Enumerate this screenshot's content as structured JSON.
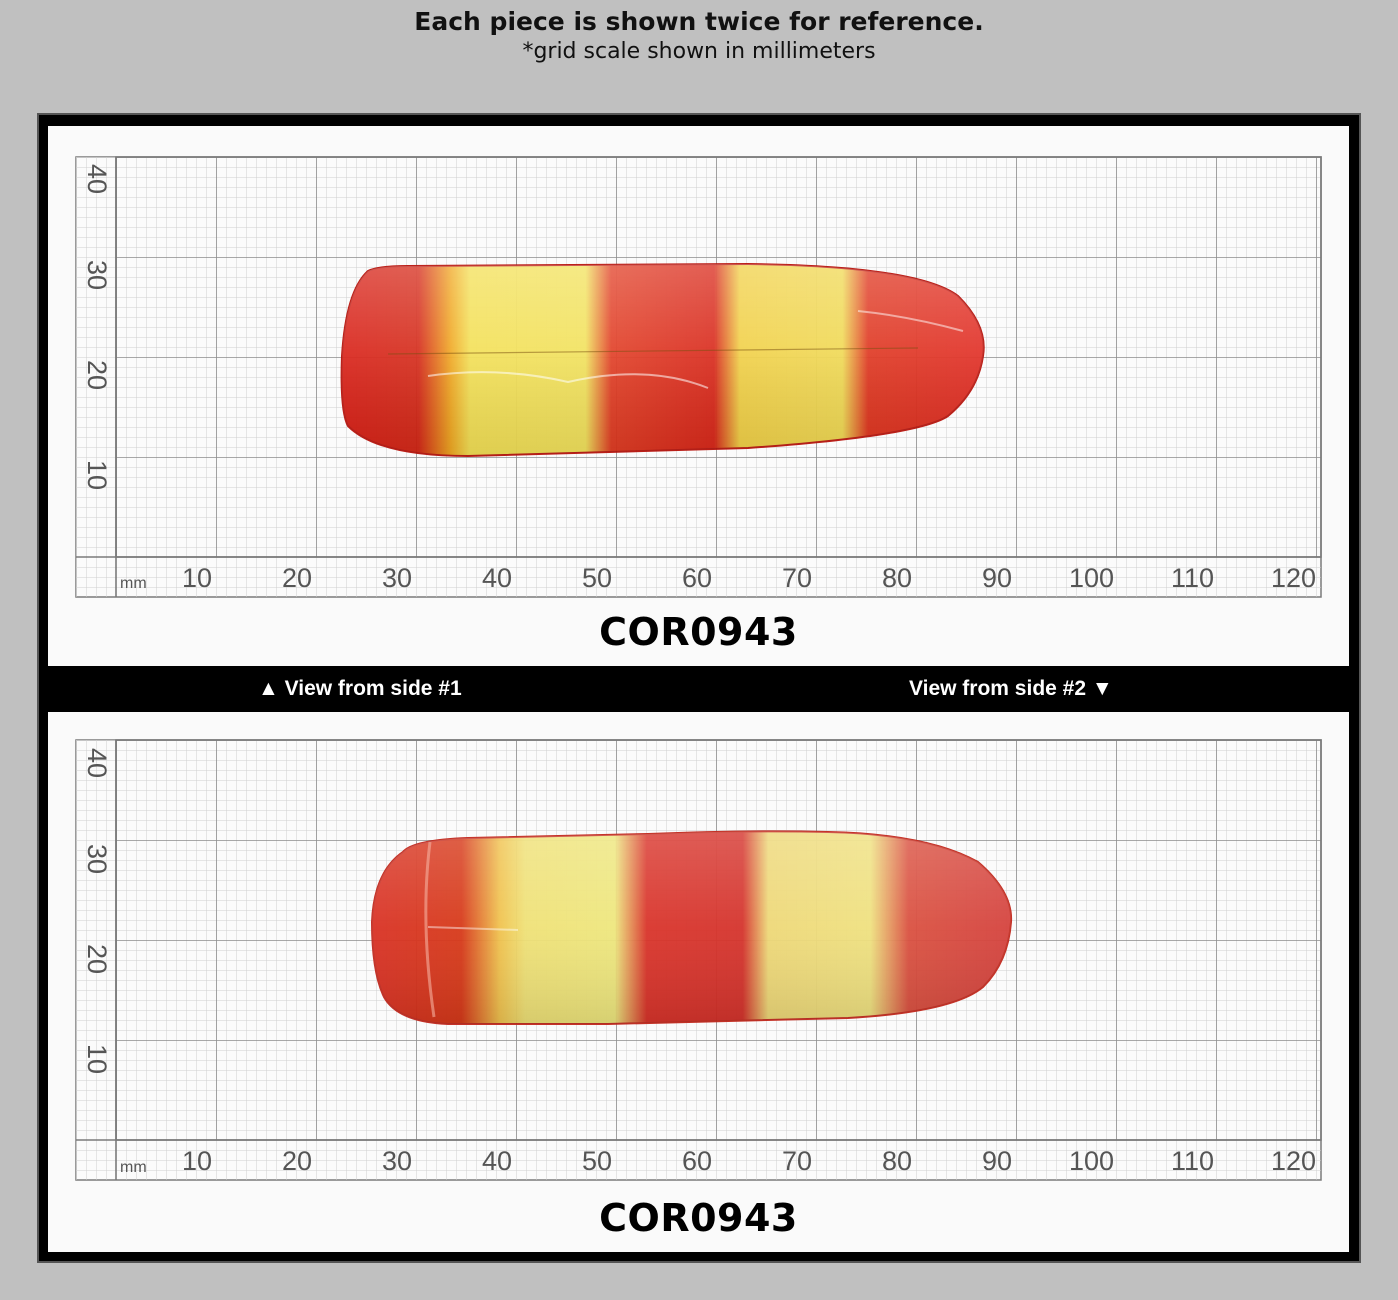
{
  "header": {
    "title": "Each piece is shown twice for reference.",
    "subtitle": "*grid scale shown in millimeters"
  },
  "views": [
    {
      "code": "COR0943",
      "x_ticks": [
        "10",
        "20",
        "30",
        "40",
        "50",
        "60",
        "70",
        "80",
        "90",
        "100",
        "110",
        "120"
      ],
      "y_ticks": [
        "40",
        "30",
        "20",
        "10"
      ],
      "unit": "mm"
    },
    {
      "code": "COR0943",
      "x_ticks": [
        "10",
        "20",
        "30",
        "40",
        "50",
        "60",
        "70",
        "80",
        "90",
        "100",
        "110",
        "120"
      ],
      "y_ticks": [
        "40",
        "30",
        "20",
        "10"
      ],
      "unit": "mm"
    }
  ],
  "captions": {
    "side1": "▲ View from side #1",
    "side2": "View from side #2 ▼"
  },
  "colors": {
    "background": "#c0c0c0",
    "frame": "#000000",
    "grid_minor": "#c8c8c8",
    "grid_major": "#8a8a8a",
    "crystal_red": "#d81e10",
    "crystal_yellow": "#f2e24a"
  }
}
